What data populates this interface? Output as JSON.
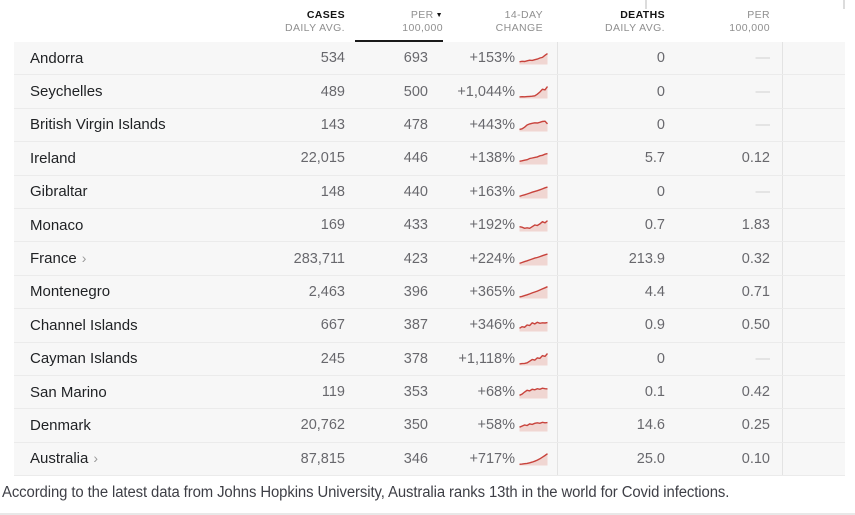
{
  "accent": {
    "spark_line": "#c8433c",
    "spark_fill": "#f0d6d2",
    "sort_underline": "#1a1a1a"
  },
  "columns": {
    "cases": {
      "label": "CASES",
      "sub": "DAILY AVG."
    },
    "per100k": {
      "label": "PER",
      "sub": "100,000",
      "sort_icon": "▼"
    },
    "change": {
      "label": "14-DAY",
      "sub": "CHANGE"
    },
    "deaths": {
      "label": "DEATHS",
      "sub": "DAILY AVG."
    },
    "deaths_per100k": {
      "label": "PER",
      "sub": "100,000"
    }
  },
  "table": {
    "rows": [
      {
        "name": "Andorra",
        "link": false,
        "cases": "534",
        "per100k": "693",
        "change": "+153%",
        "deaths": "0",
        "deaths_per100k": "—",
        "spark": [
          0.15,
          0.2,
          0.18,
          0.25,
          0.3,
          0.28,
          0.35,
          0.4,
          0.5,
          0.55,
          0.75,
          0.9
        ]
      },
      {
        "name": "Seychelles",
        "link": false,
        "cases": "489",
        "per100k": "500",
        "change": "+1,044%",
        "deaths": "0",
        "deaths_per100k": "—",
        "spark": [
          0.05,
          0.07,
          0.06,
          0.08,
          0.1,
          0.12,
          0.15,
          0.3,
          0.5,
          0.75,
          0.7,
          1.0
        ]
      },
      {
        "name": "British Virgin Islands",
        "link": false,
        "cases": "143",
        "per100k": "478",
        "change": "+443%",
        "deaths": "0",
        "deaths_per100k": "—",
        "spark": [
          0.1,
          0.15,
          0.3,
          0.5,
          0.6,
          0.65,
          0.7,
          0.68,
          0.75,
          0.82,
          0.85,
          0.6
        ]
      },
      {
        "name": "Ireland",
        "link": false,
        "cases": "22,015",
        "per100k": "446",
        "change": "+138%",
        "deaths": "5.7",
        "deaths_per100k": "0.12",
        "spark": [
          0.2,
          0.25,
          0.3,
          0.35,
          0.45,
          0.5,
          0.55,
          0.6,
          0.7,
          0.75,
          0.85,
          0.9
        ]
      },
      {
        "name": "Gibraltar",
        "link": false,
        "cases": "148",
        "per100k": "440",
        "change": "+163%",
        "deaths": "0",
        "deaths_per100k": "—",
        "spark": [
          0.1,
          0.18,
          0.25,
          0.32,
          0.4,
          0.48,
          0.55,
          0.62,
          0.7,
          0.78,
          0.88,
          0.95
        ]
      },
      {
        "name": "Monaco",
        "link": false,
        "cases": "169",
        "per100k": "433",
        "change": "+192%",
        "deaths": "0.7",
        "deaths_per100k": "1.83",
        "spark": [
          0.35,
          0.3,
          0.2,
          0.25,
          0.2,
          0.35,
          0.5,
          0.45,
          0.6,
          0.8,
          0.7,
          0.9
        ]
      },
      {
        "name": "France",
        "link": true,
        "cases": "283,711",
        "per100k": "423",
        "change": "+224%",
        "deaths": "213.9",
        "deaths_per100k": "0.32",
        "spark": [
          0.1,
          0.18,
          0.26,
          0.34,
          0.42,
          0.5,
          0.58,
          0.64,
          0.72,
          0.8,
          0.88,
          0.95
        ]
      },
      {
        "name": "Montenegro",
        "link": false,
        "cases": "2,463",
        "per100k": "396",
        "change": "+365%",
        "deaths": "4.4",
        "deaths_per100k": "0.71",
        "spark": [
          0.05,
          0.1,
          0.17,
          0.25,
          0.33,
          0.42,
          0.5,
          0.58,
          0.68,
          0.78,
          0.88,
          0.98
        ]
      },
      {
        "name": "Channel Islands",
        "link": false,
        "cases": "667",
        "per100k": "387",
        "change": "+346%",
        "deaths": "0.9",
        "deaths_per100k": "0.50",
        "spark": [
          0.2,
          0.35,
          0.3,
          0.5,
          0.45,
          0.7,
          0.6,
          0.75,
          0.65,
          0.7,
          0.68,
          0.72
        ]
      },
      {
        "name": "Cayman Islands",
        "link": false,
        "cases": "245",
        "per100k": "378",
        "change": "+1,118%",
        "deaths": "0",
        "deaths_per100k": "—",
        "spark": [
          0.05,
          0.08,
          0.1,
          0.15,
          0.3,
          0.45,
          0.4,
          0.6,
          0.55,
          0.8,
          0.75,
          1.0
        ]
      },
      {
        "name": "San Marino",
        "link": false,
        "cases": "119",
        "per100k": "353",
        "change": "+68%",
        "deaths": "0.1",
        "deaths_per100k": "0.42",
        "spark": [
          0.2,
          0.3,
          0.5,
          0.65,
          0.6,
          0.75,
          0.7,
          0.8,
          0.75,
          0.85,
          0.8,
          0.78
        ]
      },
      {
        "name": "Denmark",
        "link": false,
        "cases": "20,762",
        "per100k": "350",
        "change": "+58%",
        "deaths": "14.6",
        "deaths_per100k": "0.25",
        "spark": [
          0.3,
          0.4,
          0.5,
          0.45,
          0.6,
          0.55,
          0.65,
          0.7,
          0.65,
          0.75,
          0.7,
          0.72
        ]
      },
      {
        "name": "Australia",
        "link": true,
        "cases": "87,815",
        "per100k": "346",
        "change": "+717%",
        "deaths": "25.0",
        "deaths_per100k": "0.10",
        "spark": [
          0.02,
          0.04,
          0.07,
          0.1,
          0.15,
          0.22,
          0.3,
          0.4,
          0.52,
          0.66,
          0.82,
          0.98
        ]
      }
    ],
    "link_chevron": "›"
  },
  "caption": {
    "text": "According to the latest data from Johns Hopkins University, Australia ranks 13th in the world for Covid infections."
  }
}
